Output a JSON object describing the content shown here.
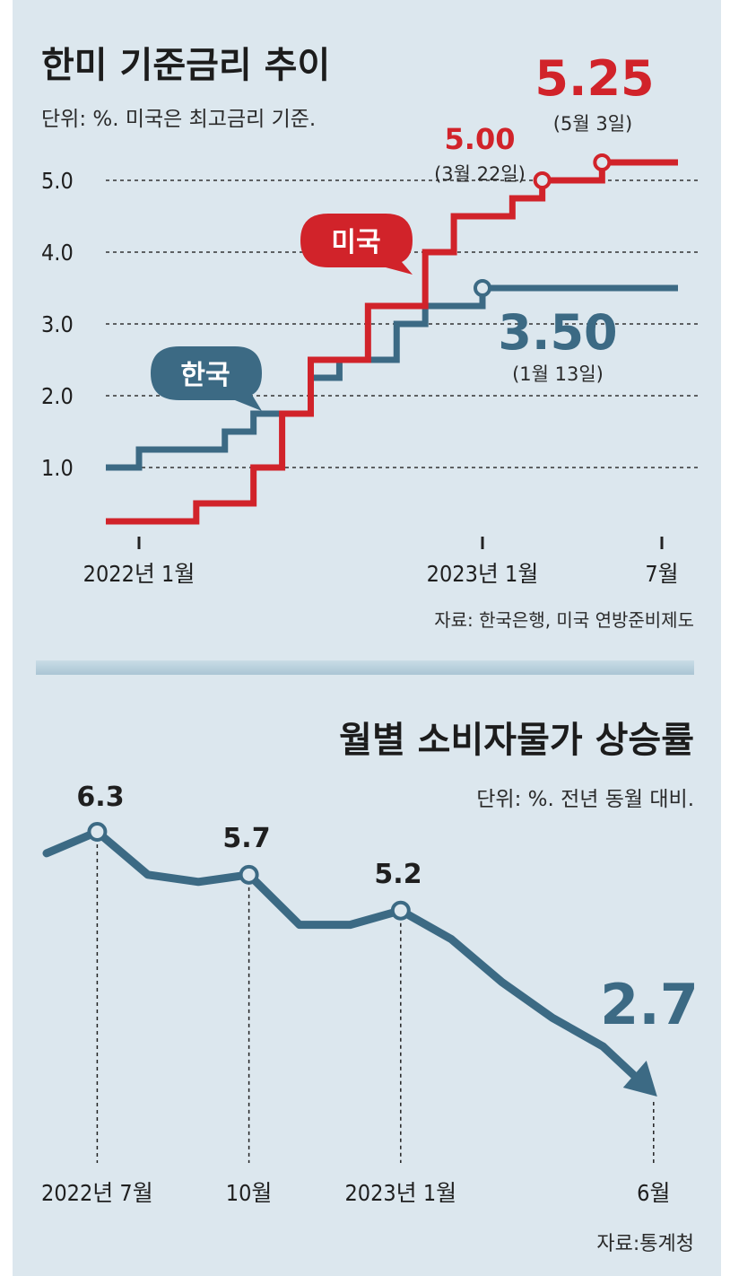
{
  "top": {
    "title": "한미 기준금리 추이",
    "unit_note": "단위: %. 미국은 최고금리 기준.",
    "source": "자료: 한국은행, 미국 연방준비제도",
    "us_bubble": "미국",
    "kr_bubble": "한국",
    "ann_us_525": "5.25",
    "ann_us_525_date": "(5월 3일)",
    "ann_us_500": "5.00",
    "ann_us_500_date": "(3월 22일)",
    "ann_kr_350": "3.50",
    "ann_kr_350_date": "(1월 13일)",
    "colors": {
      "us": "#d1232a",
      "kr": "#3c6a84",
      "bg": "#dce7ee"
    }
  },
  "bottom": {
    "title": "월별 소비자물가 상승률",
    "unit_note": "단위: %. 전년 동월 대비.",
    "source": "자료:통계청",
    "ann_63": "6.3",
    "ann_57": "5.7",
    "ann_52": "5.2",
    "ann_27": "2.7",
    "colors": {
      "line": "#3c6a84"
    }
  },
  "chart_data": [
    {
      "type": "line",
      "title": "한미 기준금리 추이",
      "note": "단위: %. 미국은 최고금리 기준.",
      "y_ticks": [
        "5.0",
        "4.0",
        "3.0",
        "2.0",
        "1.0"
      ],
      "y_tick_values": [
        5.0,
        4.0,
        3.0,
        2.0,
        1.0
      ],
      "ylim": [
        0,
        5.5
      ],
      "x_ticks": [
        {
          "label": "2022년 1월",
          "x": "2022-01"
        },
        {
          "label": "2023년 1월",
          "x": "2023-01"
        },
        {
          "label": "7월",
          "x": "2023-07"
        }
      ],
      "grid": "dashed horizontal",
      "step": true,
      "series": [
        {
          "name": "미국",
          "color": "#d1232a",
          "points": [
            [
              "2021-12",
              0.25
            ],
            [
              "2022-03",
              0.5
            ],
            [
              "2022-05",
              1.0
            ],
            [
              "2022-06",
              1.75
            ],
            [
              "2022-07",
              2.5
            ],
            [
              "2022-09",
              3.25
            ],
            [
              "2022-11",
              4.0
            ],
            [
              "2022-12",
              4.5
            ],
            [
              "2023-02",
              4.75
            ],
            [
              "2023-03",
              5.0
            ],
            [
              "2023-05",
              5.25
            ],
            [
              "2023-07",
              5.25
            ]
          ]
        },
        {
          "name": "한국",
          "color": "#3c6a84",
          "points": [
            [
              "2021-12",
              1.0
            ],
            [
              "2022-01",
              1.25
            ],
            [
              "2022-04",
              1.5
            ],
            [
              "2022-05",
              1.75
            ],
            [
              "2022-07",
              2.25
            ],
            [
              "2022-08",
              2.5
            ],
            [
              "2022-10",
              3.0
            ],
            [
              "2022-11",
              3.25
            ],
            [
              "2023-01",
              3.5
            ],
            [
              "2023-07",
              3.5
            ]
          ]
        }
      ],
      "annotations": [
        {
          "series": "미국",
          "x": "2023-05",
          "value": "5.25",
          "date": "(5월 3일)"
        },
        {
          "series": "미국",
          "x": "2023-03",
          "value": "5.00",
          "date": "(3월 22일)"
        },
        {
          "series": "한국",
          "x": "2023-01",
          "value": "3.50",
          "date": "(1월 13일)"
        }
      ]
    },
    {
      "type": "line",
      "title": "월별 소비자물가 상승률",
      "note": "단위: %. 전년 동월 대비.",
      "x": [
        "2022-06",
        "2022-07",
        "2022-08",
        "2022-09",
        "2022-10",
        "2022-11",
        "2022-12",
        "2023-01",
        "2023-02",
        "2023-03",
        "2023-04",
        "2023-05",
        "2023-06"
      ],
      "values": [
        6.0,
        6.3,
        5.7,
        5.6,
        5.7,
        5.0,
        5.0,
        5.2,
        4.8,
        4.2,
        3.7,
        3.3,
        2.7
      ],
      "x_ticks": [
        {
          "label": "2022년 7월",
          "x": "2022-07"
        },
        {
          "label": "10월",
          "x": "2022-10"
        },
        {
          "label": "2023년 1월",
          "x": "2023-01"
        },
        {
          "label": "6월",
          "x": "2023-06"
        }
      ],
      "labeled_points": [
        {
          "x": "2022-07",
          "label": "6.3"
        },
        {
          "x": "2022-10",
          "label": "5.7"
        },
        {
          "x": "2023-01",
          "label": "5.2"
        },
        {
          "x": "2023-06",
          "label": "2.7"
        }
      ]
    }
  ]
}
